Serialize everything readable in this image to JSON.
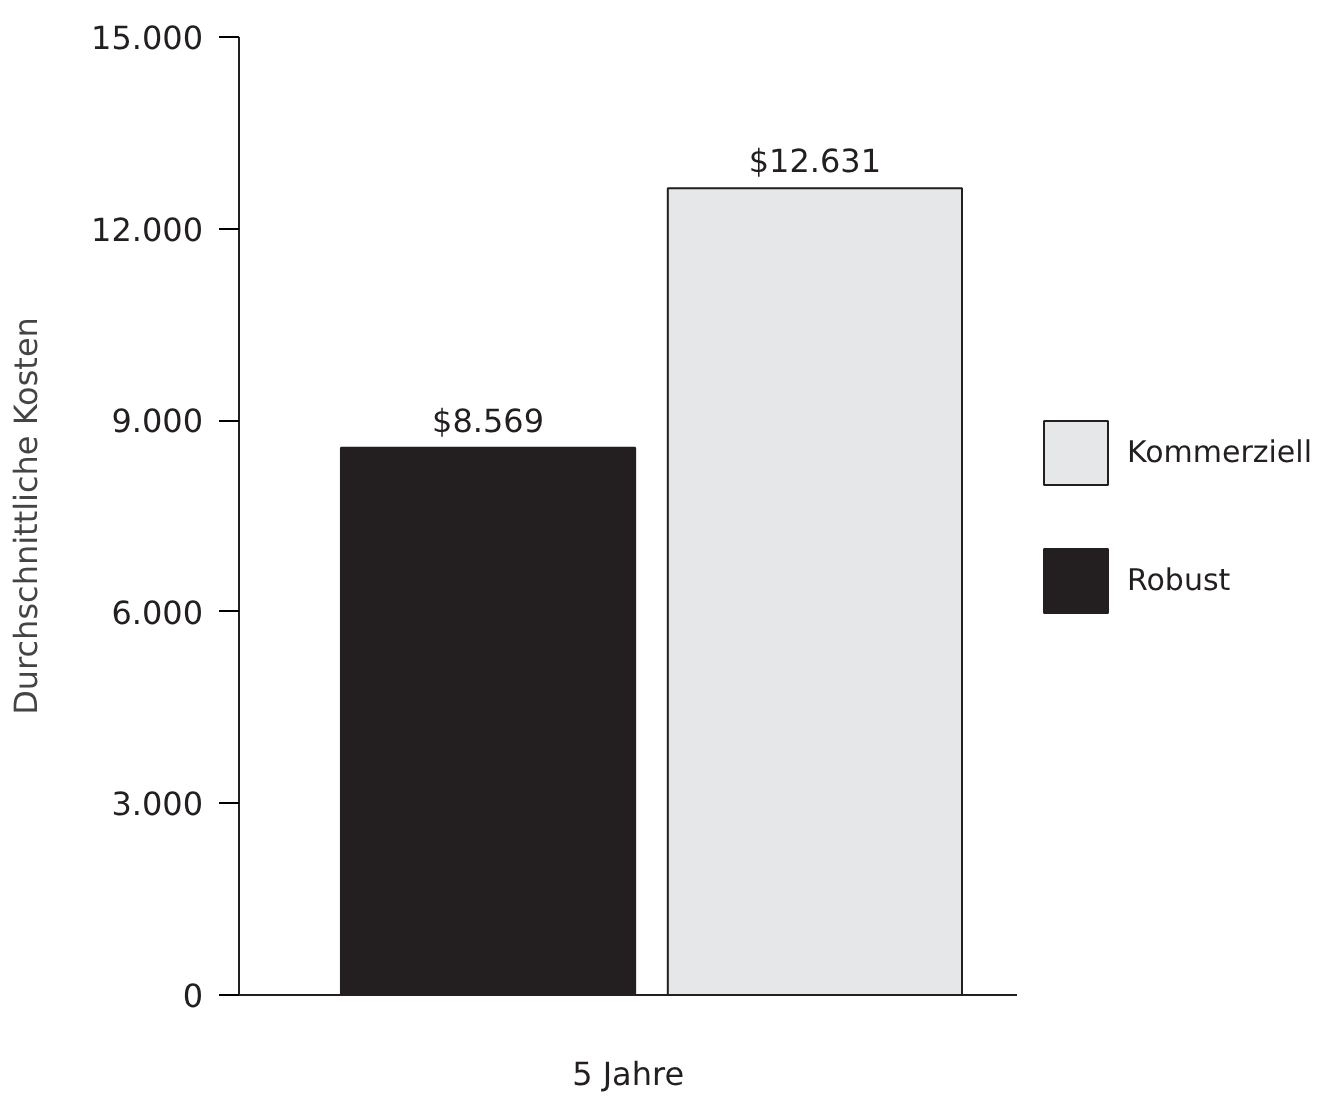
{
  "chart_data": {
    "type": "bar",
    "categories": [
      "5 Jahre"
    ],
    "ylabel": "Durchschnittliche Kosten",
    "series": [
      {
        "name": "Robust",
        "color": "#231f20",
        "values": [
          8569
        ],
        "value_labels": [
          "$8.569"
        ]
      },
      {
        "name": "Kommerziell",
        "color": "#e6e7e8",
        "values": [
          12631
        ],
        "value_labels": [
          "$12.631"
        ]
      }
    ],
    "ylim": [
      0,
      15000
    ],
    "yticks": [
      {
        "value": 0,
        "label": "0"
      },
      {
        "value": 3000,
        "label": "3.000"
      },
      {
        "value": 6000,
        "label": "6.000"
      },
      {
        "value": 9000,
        "label": "9.000"
      },
      {
        "value": 12000,
        "label": "12.000"
      },
      {
        "value": 15000,
        "label": "15.000"
      }
    ],
    "legend": "right"
  }
}
